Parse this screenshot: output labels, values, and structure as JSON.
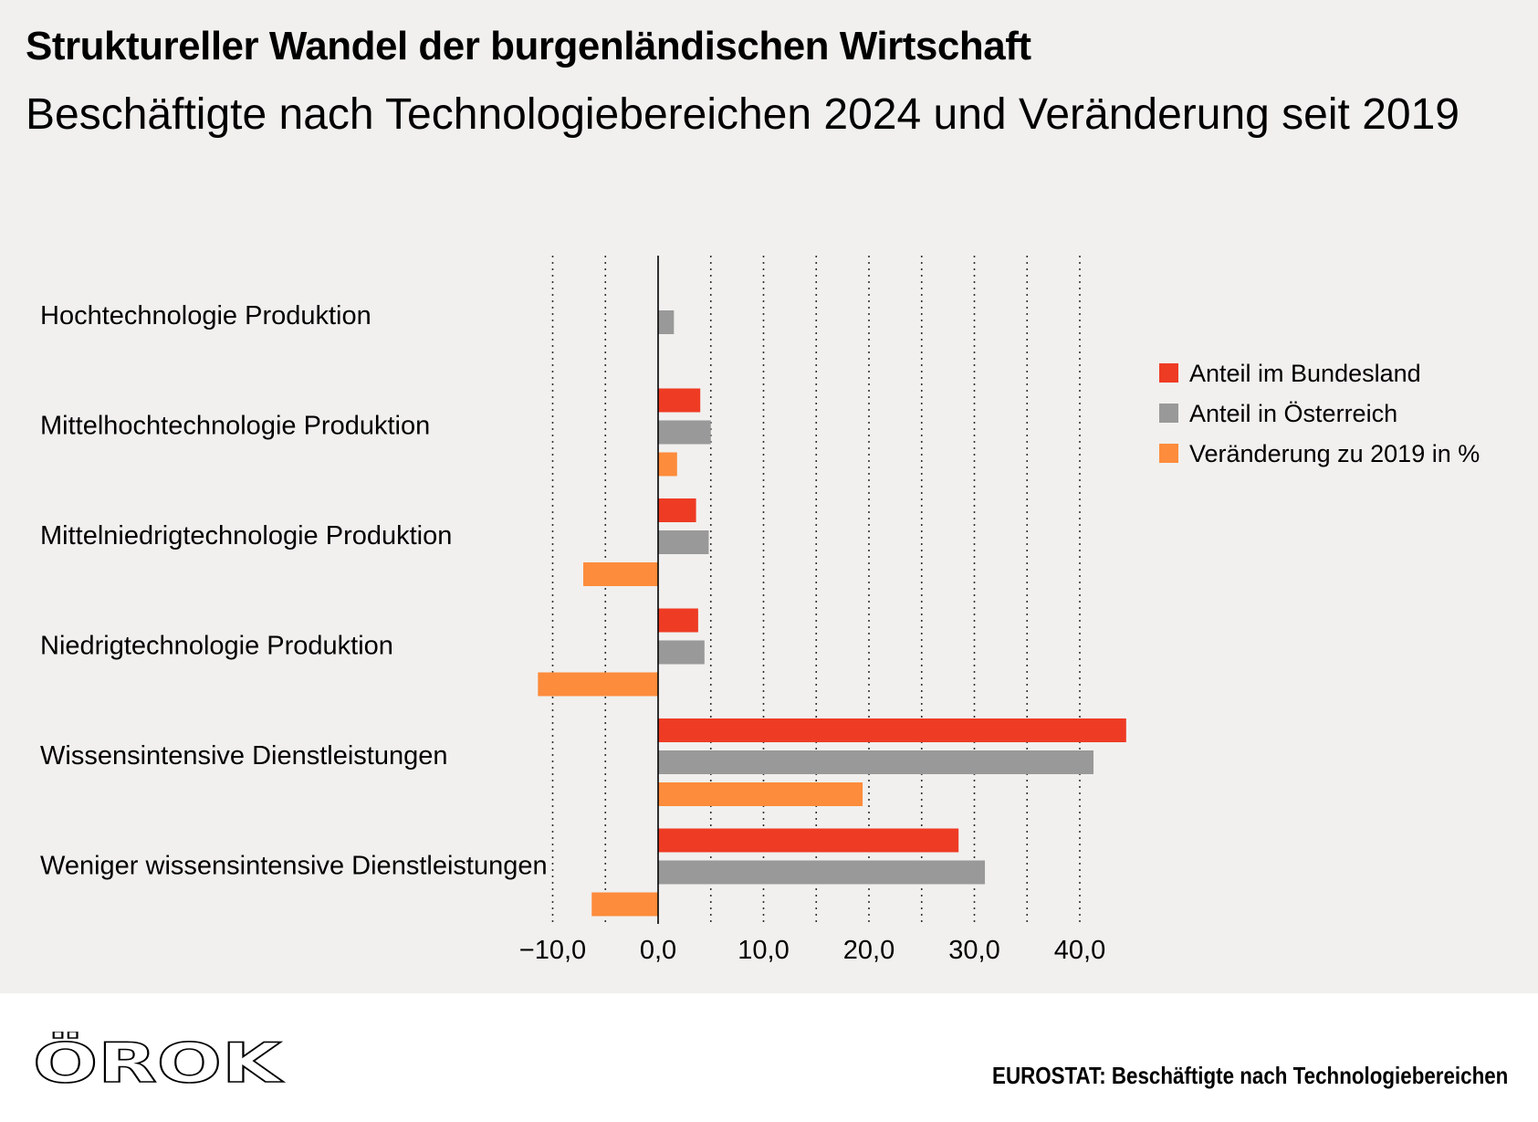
{
  "title": "Struktureller Wandel der burgenländischen Wirtschaft",
  "subtitle": "Beschäftigte nach Technologiebereichen 2024 und Veränderung seit 2019",
  "logo_text": "ÖROK",
  "source": "EUROSTAT: Beschäftigte nach Technologiebereichen",
  "colors": {
    "background": "#f1f0ee",
    "bundesland": "#ee3b24",
    "oesterreich": "#999999",
    "veraenderung": "#fd8c3c"
  },
  "chart_data": {
    "type": "bar",
    "orientation": "horizontal",
    "title": "Struktureller Wandel der burgenländischen Wirtschaft",
    "subtitle": "Beschäftigte nach Technologiebereichen 2024 und Veränderung seit 2019",
    "categories": [
      "Hochtechnologie Produktion",
      "Mittelhochtechnologie Produktion",
      "Mittelniedrigtechnologie Produktion",
      "Niedrigtechnologie Produktion",
      "Wissensintensive Dienstleistungen",
      "Weniger wissensintensive Dienstleistungen"
    ],
    "series": [
      {
        "name": "Anteil im Bundesland",
        "color": "#ee3b24",
        "values": [
          null,
          4.0,
          3.6,
          3.8,
          44.4,
          28.5
        ]
      },
      {
        "name": "Anteil in Österreich",
        "color": "#999999",
        "values": [
          1.5,
          5.0,
          4.8,
          4.4,
          41.3,
          31.0
        ]
      },
      {
        "name": "Veränderung zu 2019 in %",
        "color": "#fd8c3c",
        "values": [
          null,
          1.8,
          -7.1,
          -11.4,
          19.4,
          -6.3
        ]
      }
    ],
    "xlim": [
      -10,
      45
    ],
    "xticks": [
      -10,
      0,
      10,
      20,
      30,
      40
    ],
    "xtick_labels": [
      "−10,0",
      "0,0",
      "10,0",
      "20,0",
      "30,0",
      "40,0"
    ],
    "gridlines": [
      -10,
      -5,
      5,
      10,
      15,
      20,
      25,
      30,
      35,
      40
    ],
    "grid": true,
    "legend_position": "right"
  }
}
